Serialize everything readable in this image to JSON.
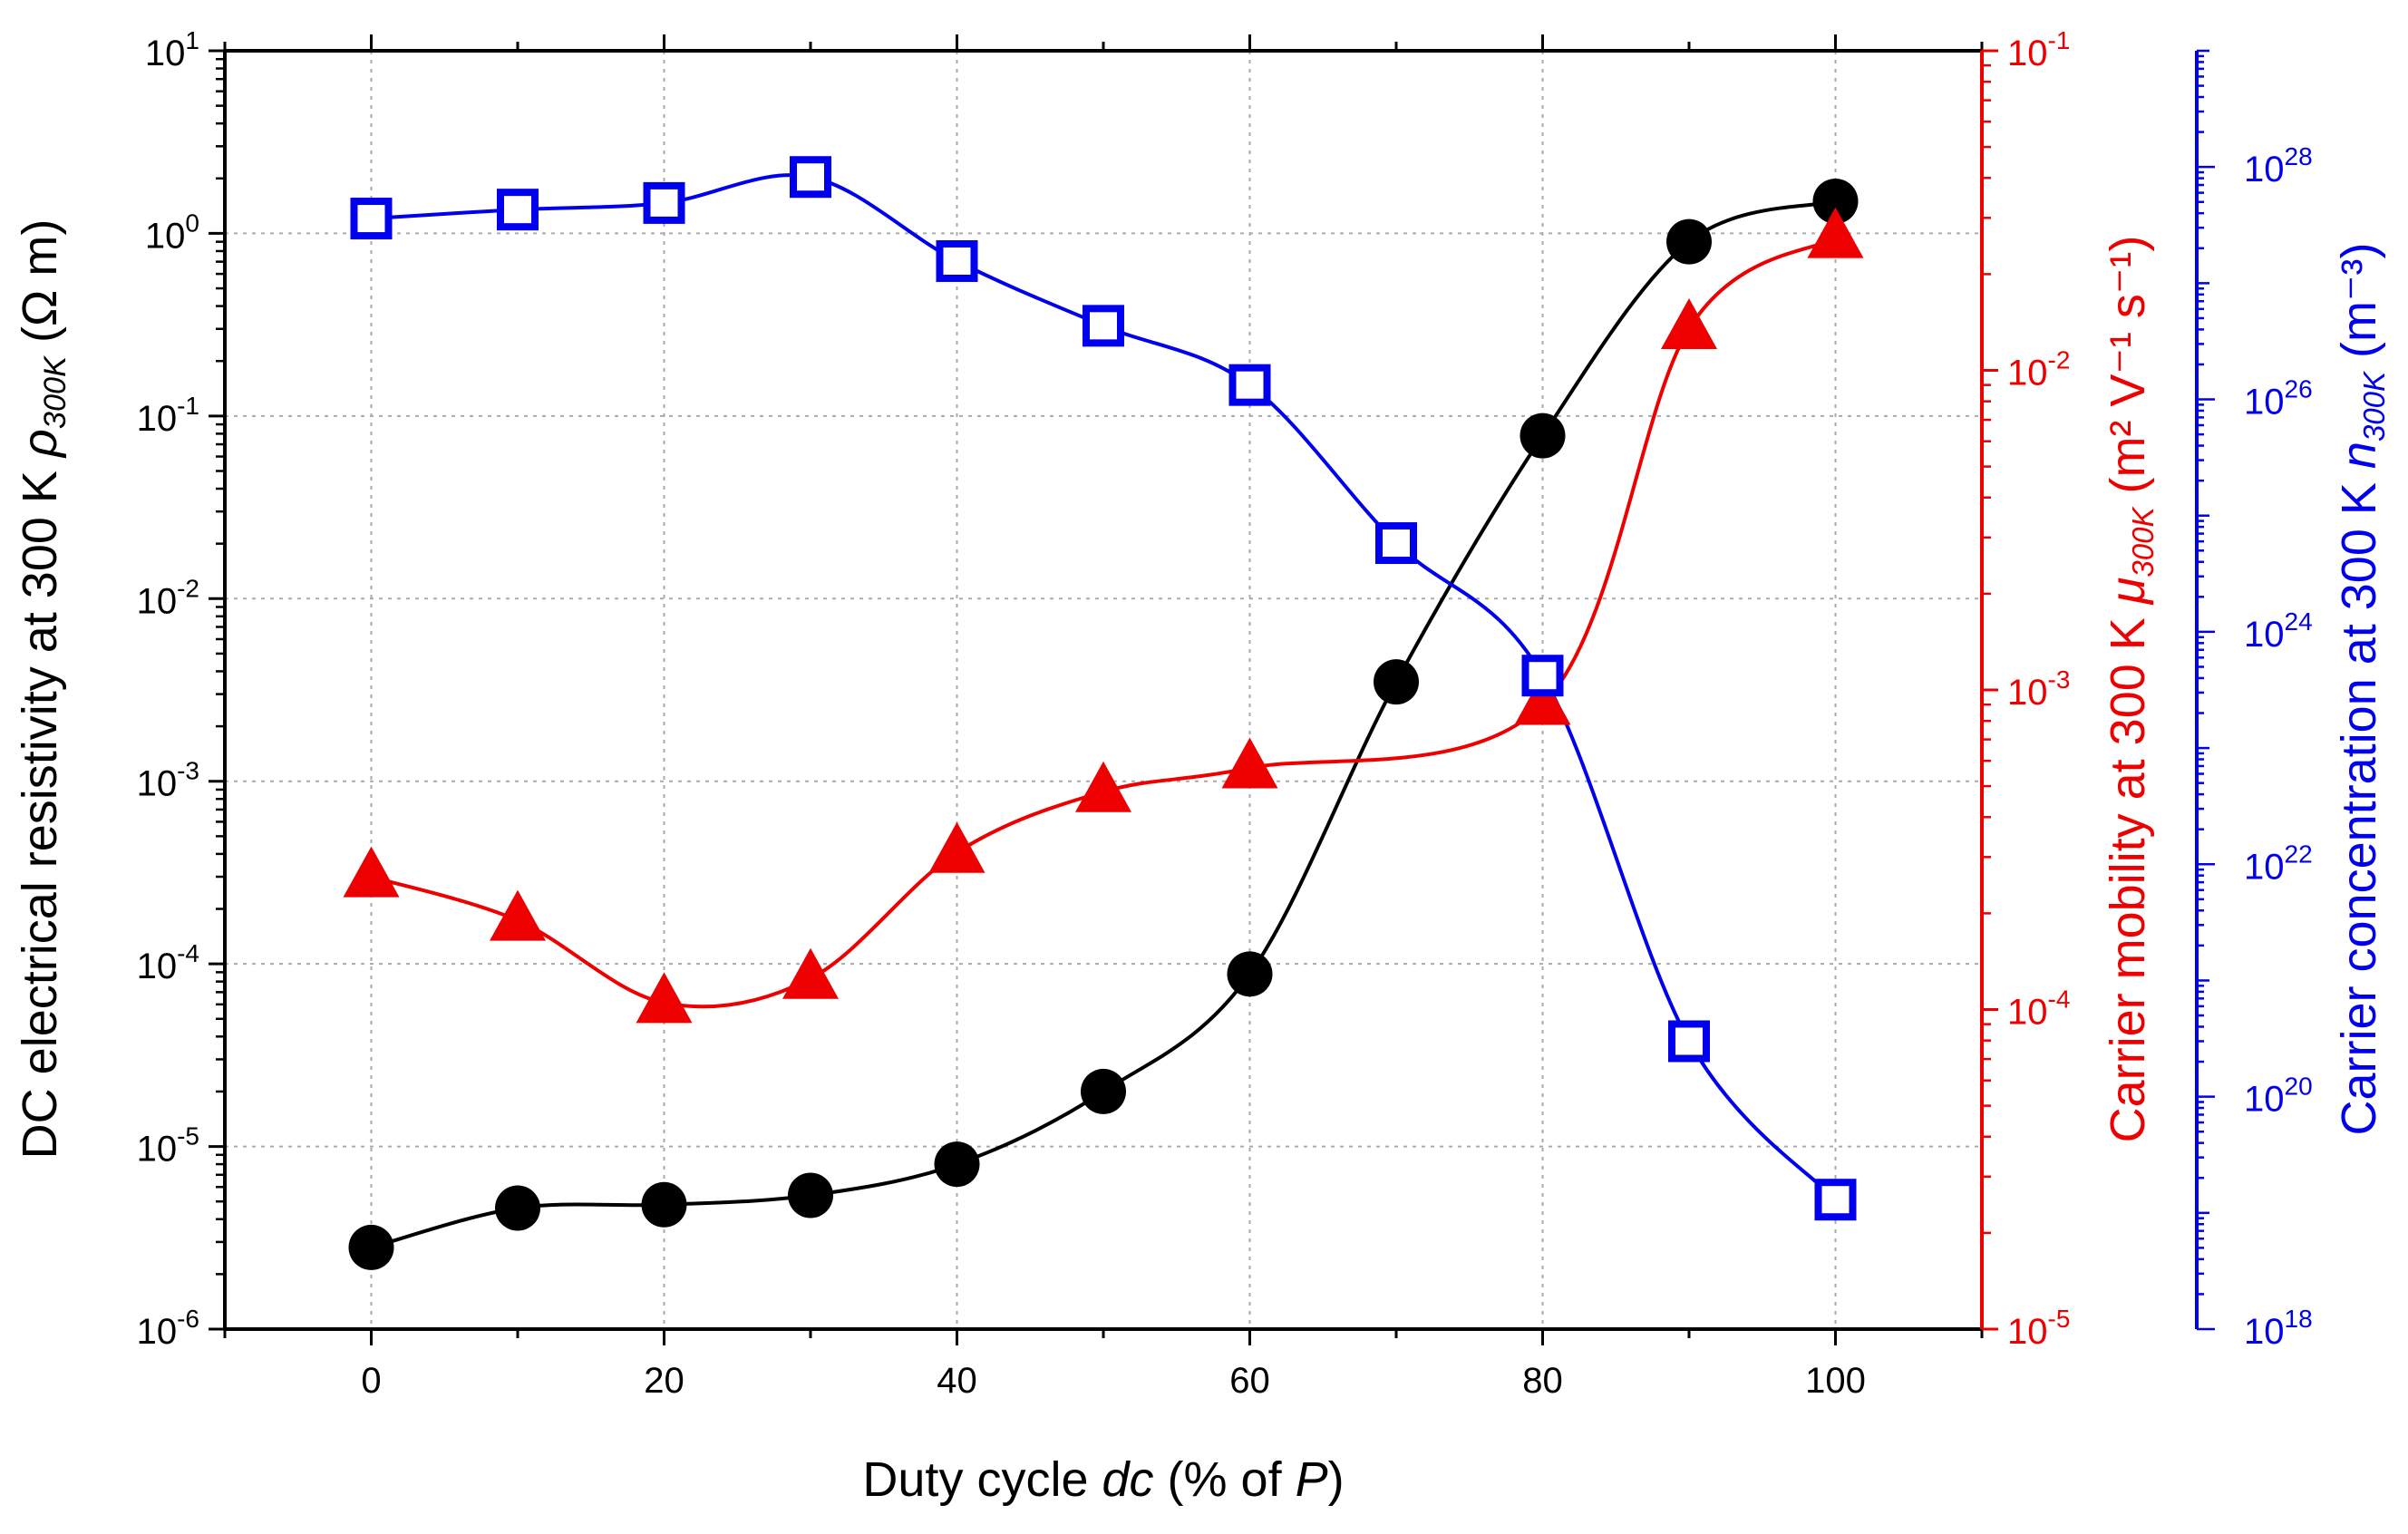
{
  "chart_data": {
    "type": "line",
    "x": [
      0,
      10,
      20,
      30,
      40,
      50,
      60,
      70,
      80,
      90,
      100
    ],
    "xlim": [
      -10,
      110
    ],
    "x_ticks": [
      0,
      20,
      40,
      60,
      80,
      100
    ],
    "xlabel": {
      "pre": "Duty cycle ",
      "italic": "dc",
      "mid": " (% of ",
      "italic2": "P",
      "post": ")"
    },
    "grid": true,
    "legend": "none",
    "axes": {
      "left": {
        "scale": "log",
        "ylim": [
          1e-06,
          10
        ],
        "color": "#000000",
        "tick_exponents": [
          -6,
          -5,
          -4,
          -3,
          -2,
          -1,
          0,
          1
        ],
        "label": {
          "pre": "DC electrical resistivity at 300 K ",
          "sym": "ρ",
          "sub": "300K",
          "post": " (Ω m)"
        }
      },
      "right1": {
        "scale": "log",
        "ylim": [
          1e-05,
          0.1
        ],
        "color": "#ee0000",
        "tick_exponents": [
          -5,
          -4,
          -3,
          -2,
          -1
        ],
        "label": {
          "pre": "Carrier mobility at 300 K ",
          "sym": "μ",
          "sub": "300K",
          "post": " (m² V⁻¹ s⁻¹)"
        }
      },
      "right2": {
        "scale": "log",
        "ylim": [
          1e+18,
          1e+29
        ],
        "color": "#0000ee",
        "tick_exponents": [
          18,
          20,
          22,
          24,
          26,
          28
        ],
        "label": {
          "pre": "Carrier concentration at 300 K ",
          "sym": "n",
          "sub": "300K",
          "post": " (m⁻³)"
        }
      }
    },
    "series": [
      {
        "axis": "left",
        "marker": "circle",
        "color": "#000000",
        "values": [
          2.8e-06,
          4.6e-06,
          4.8e-06,
          5.4e-06,
          8e-06,
          2e-05,
          8.8e-05,
          0.0035,
          0.078,
          0.9,
          1.5
        ]
      },
      {
        "axis": "right1",
        "marker": "triangle",
        "color": "#ee0000",
        "values": [
          0.00026,
          0.00019,
          0.000105,
          0.000125,
          0.00031,
          0.00048,
          0.00057,
          null,
          0.0009,
          0.0135,
          0.026
        ]
      },
      {
        "axis": "right2",
        "marker": "open-square",
        "color": "#0000ee",
        "values": [
          3.6e+27,
          4.3e+27,
          4.9e+27,
          8.2e+27,
          1.55e+27,
          4.3e+26,
          1.33e+26,
          5.8e+24,
          4.2e+23,
          3e+20,
          1.3e+19
        ]
      }
    ]
  }
}
